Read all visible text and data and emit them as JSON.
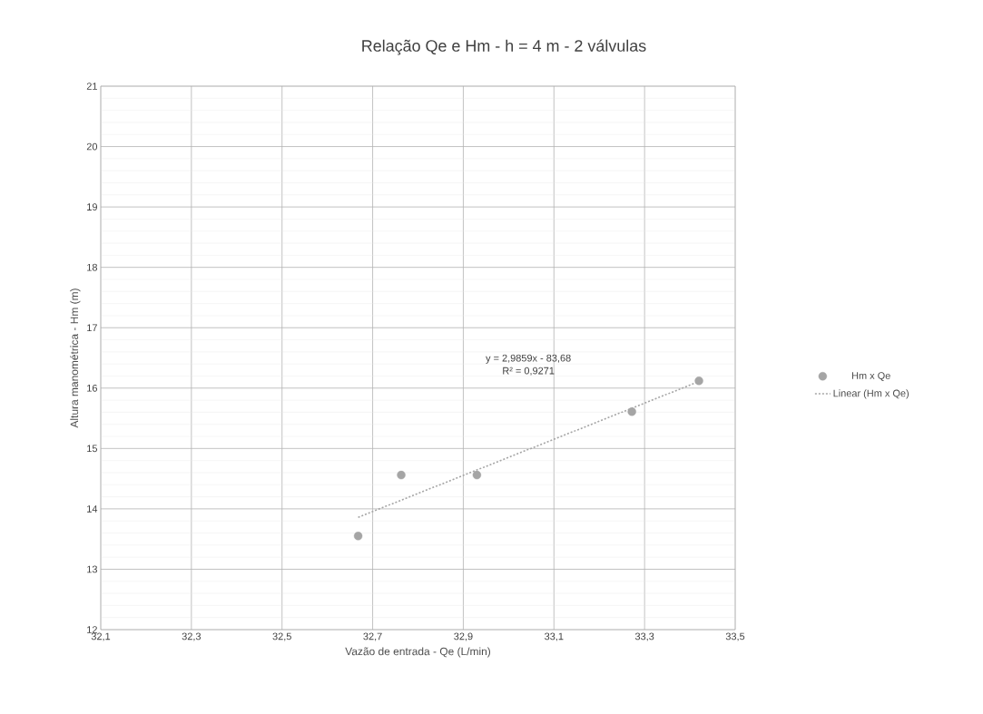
{
  "chart_data": {
    "type": "scatter",
    "title": "Relação Qe e Hm - h = 4 m - 2 válvulas",
    "xlabel": "Vazão de entrada - Qe (L/min)",
    "ylabel": "Altura manométrica - Hm (m)",
    "series": [
      {
        "name": "Hm x Qe",
        "color": "#a5a5a5",
        "marker": "circle",
        "x": [
          32.668,
          32.763,
          32.93,
          33.272,
          33.42
        ],
        "values": [
          13.55,
          14.56,
          14.56,
          15.61,
          16.12
        ]
      },
      {
        "name": "Linear (Hm x Qe)",
        "type": "line",
        "color": "#a5a5a5",
        "line_style": "dotted",
        "marker": "none",
        "x": [
          32.668,
          33.42
        ],
        "values": [
          13.86,
          16.11
        ]
      }
    ],
    "annotations": [
      "y = 2,9859x - 83,68",
      "R² = 0,9271"
    ],
    "xlim": [
      32.1,
      33.5
    ],
    "xticks": [
      {
        "value": 32.1,
        "label": "32,1"
      },
      {
        "value": 32.3,
        "label": "32,3"
      },
      {
        "value": 32.5,
        "label": "32,5"
      },
      {
        "value": 32.7,
        "label": "32,7"
      },
      {
        "value": 32.9,
        "label": "32,9"
      },
      {
        "value": 33.1,
        "label": "33,1"
      },
      {
        "value": 33.3,
        "label": "33,3"
      },
      {
        "value": 33.5,
        "label": "33,5"
      }
    ],
    "ylim": [
      12,
      21
    ],
    "yticks": [
      12,
      13,
      14,
      15,
      16,
      17,
      18,
      19,
      20,
      21
    ],
    "grid": true,
    "legend": "right"
  }
}
